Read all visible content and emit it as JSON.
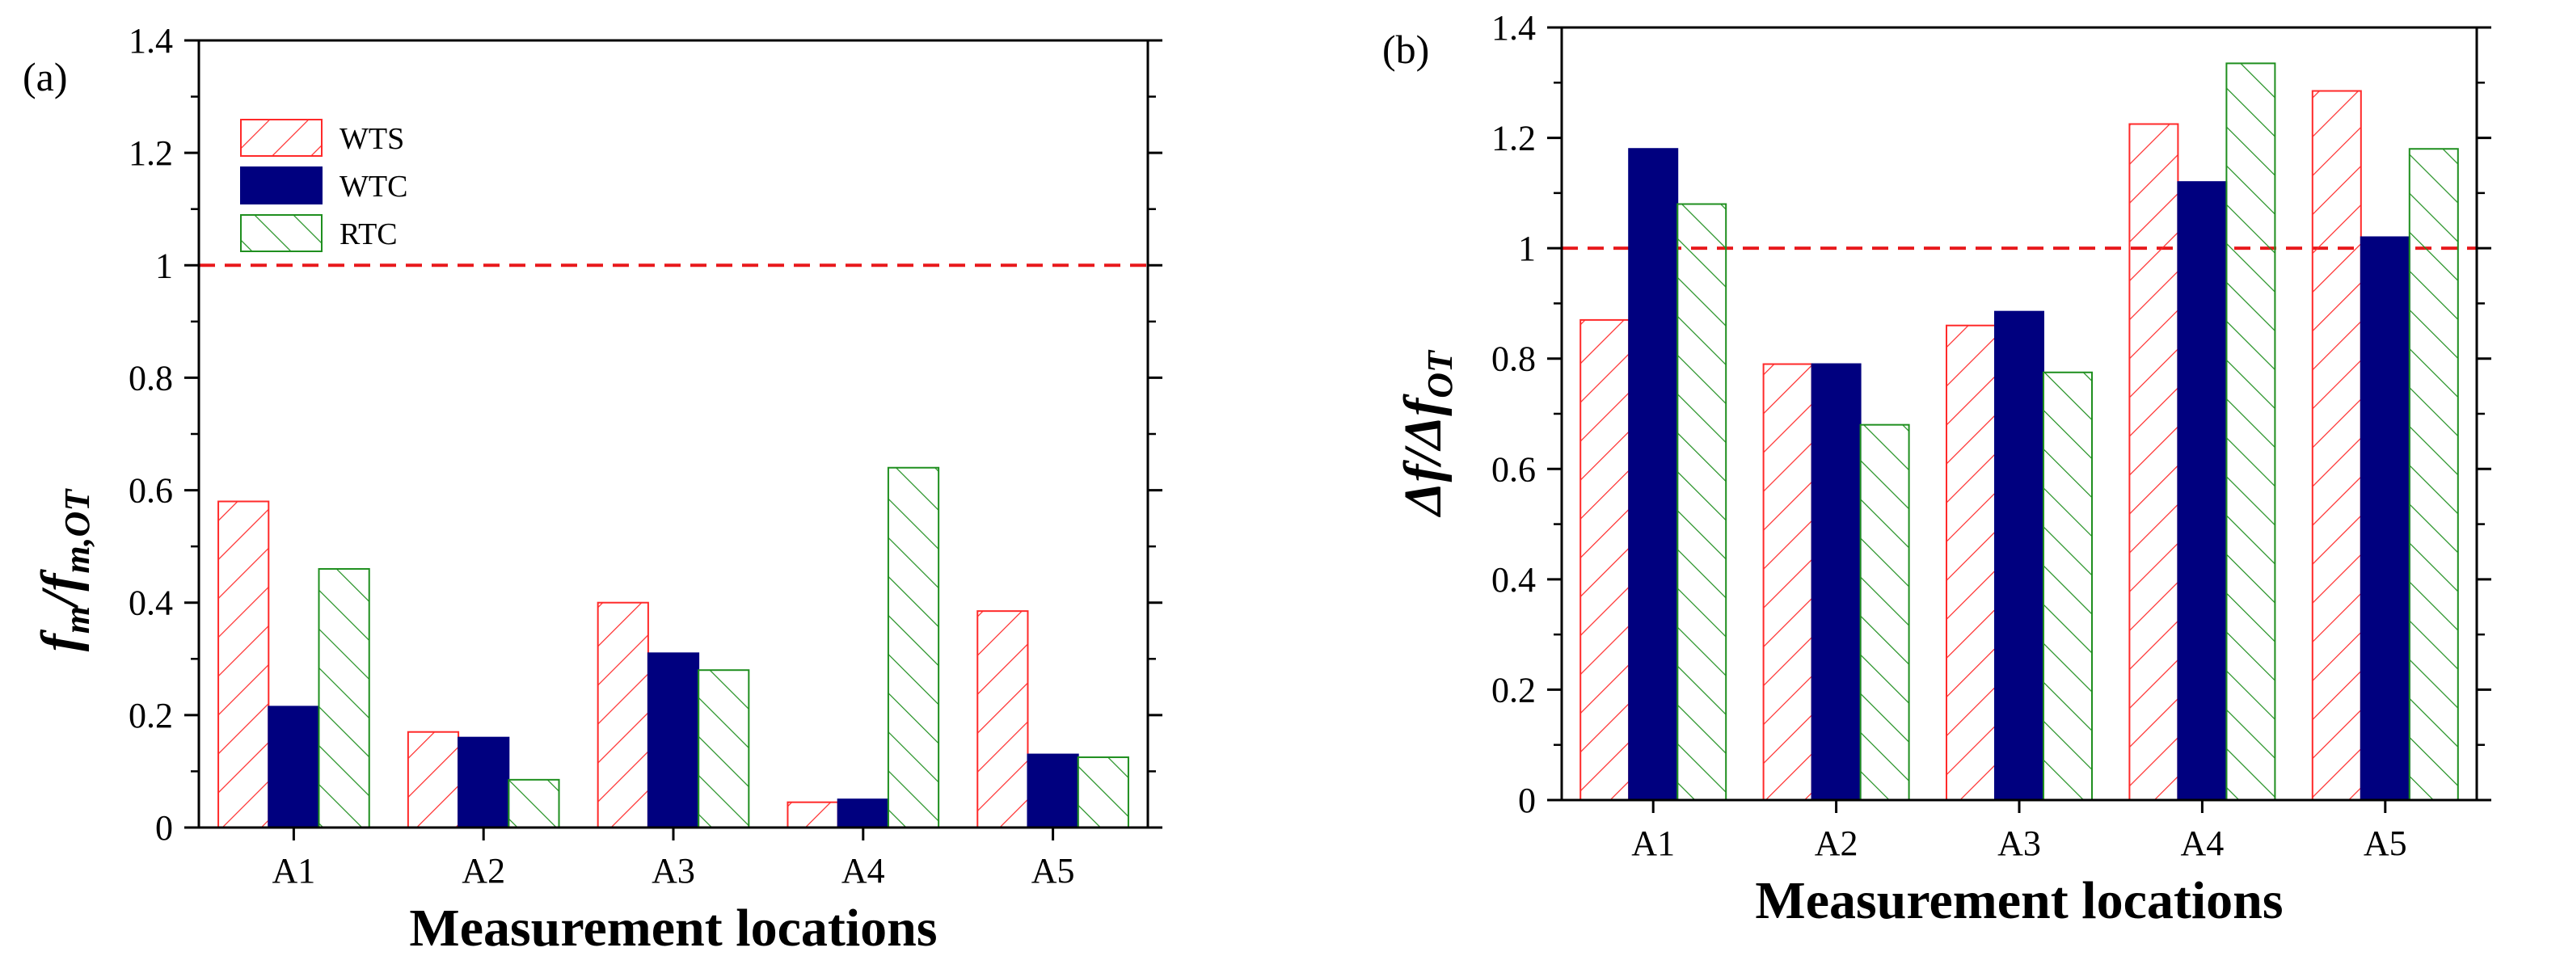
{
  "chart_data": [
    {
      "type": "bar",
      "panel_label": "(a)",
      "title": "",
      "xlabel": "Measurement locations",
      "ylabel": "f_m/f_m,OT",
      "ylabel_parts": {
        "main": "f",
        "sub1": "m",
        "slash": "/",
        "main2": "f",
        "sub2": "m,OT"
      },
      "categories": [
        "A1",
        "A2",
        "A3",
        "A4",
        "A5"
      ],
      "ylim": [
        0,
        1.4
      ],
      "yticks": [
        "0",
        "0.2",
        "0.4",
        "0.6",
        "0.8",
        "1",
        "1.2",
        "1.4"
      ],
      "reference_line": 1,
      "legend_position": "top-left",
      "series": [
        {
          "name": "WTS",
          "values": [
            0.58,
            0.17,
            0.4,
            0.045,
            0.385
          ]
        },
        {
          "name": "WTC",
          "values": [
            0.215,
            0.16,
            0.31,
            0.05,
            0.13
          ]
        },
        {
          "name": "RTC",
          "values": [
            0.46,
            0.085,
            0.28,
            0.64,
            0.125
          ]
        }
      ]
    },
    {
      "type": "bar",
      "panel_label": "(b)",
      "title": "",
      "xlabel": "Measurement locations",
      "ylabel": "Δf/Δf_OT",
      "ylabel_parts": {
        "main": "Δf/Δf",
        "sub": "OT"
      },
      "categories": [
        "A1",
        "A2",
        "A3",
        "A4",
        "A5"
      ],
      "ylim": [
        0,
        1.4
      ],
      "yticks": [
        "0",
        "0.2",
        "0.4",
        "0.6",
        "0.8",
        "1",
        "1.2",
        "1.4"
      ],
      "reference_line": 1,
      "series": [
        {
          "name": "WTS",
          "values": [
            0.87,
            0.79,
            0.86,
            1.225,
            1.285
          ]
        },
        {
          "name": "WTC",
          "values": [
            1.18,
            0.79,
            0.885,
            1.12,
            1.02
          ]
        },
        {
          "name": "RTC",
          "values": [
            1.08,
            0.68,
            0.775,
            1.335,
            1.18
          ]
        }
      ]
    }
  ],
  "colors": {
    "WTS": "#ff2a2a",
    "WTC": "#00007f",
    "RTC": "#1f8f1f",
    "reference": "#e8191c"
  }
}
